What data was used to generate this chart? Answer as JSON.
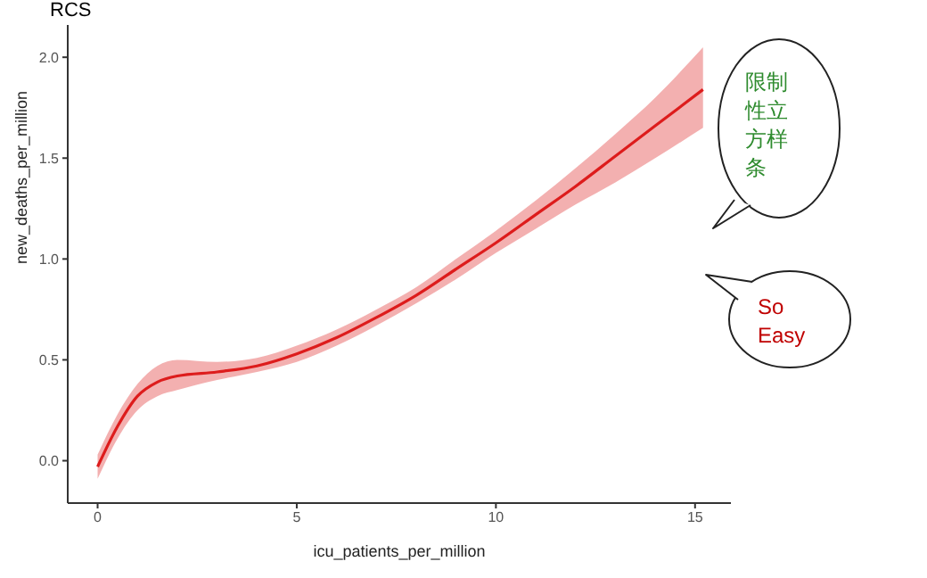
{
  "chart_data": {
    "type": "line",
    "title": "RCS",
    "xlabel": "icu_patients_per_million",
    "ylabel": "new_deaths_per_million",
    "xlim": [
      -0.75,
      15.9
    ],
    "xticks": [
      0,
      5,
      10,
      15
    ],
    "ylim": [
      -0.21,
      2.16
    ],
    "yticks": [
      {
        "value": 0,
        "label": "0.0"
      },
      0.5,
      {
        "value": 1,
        "label": "1.0"
      },
      1.5,
      {
        "value": 2,
        "label": "2.0"
      }
    ],
    "grid": false,
    "legend": false,
    "marker": "none",
    "line_style": "solid",
    "series": [
      {
        "color": "#dd1c1c",
        "x": [
          0,
          0.5,
          1,
          1.5,
          2,
          3,
          4,
          5,
          6,
          7,
          8,
          9,
          10,
          11,
          12,
          13,
          14,
          15.2
        ],
        "values": [
          -0.03,
          0.17,
          0.32,
          0.39,
          0.42,
          0.44,
          0.47,
          0.53,
          0.61,
          0.71,
          0.82,
          0.95,
          1.08,
          1.22,
          1.36,
          1.51,
          1.66,
          1.84
        ],
        "lower": [
          -0.09,
          0.11,
          0.25,
          0.32,
          0.35,
          0.4,
          0.44,
          0.49,
          0.57,
          0.67,
          0.78,
          0.9,
          1.03,
          1.15,
          1.27,
          1.38,
          1.5,
          1.65
        ],
        "upper": [
          0.03,
          0.23,
          0.38,
          0.47,
          0.5,
          0.49,
          0.51,
          0.57,
          0.65,
          0.75,
          0.86,
          1.0,
          1.14,
          1.29,
          1.45,
          1.62,
          1.8,
          2.05
        ]
      }
    ],
    "annotations": [
      "限制性立方样条",
      "So Easy"
    ]
  }
}
